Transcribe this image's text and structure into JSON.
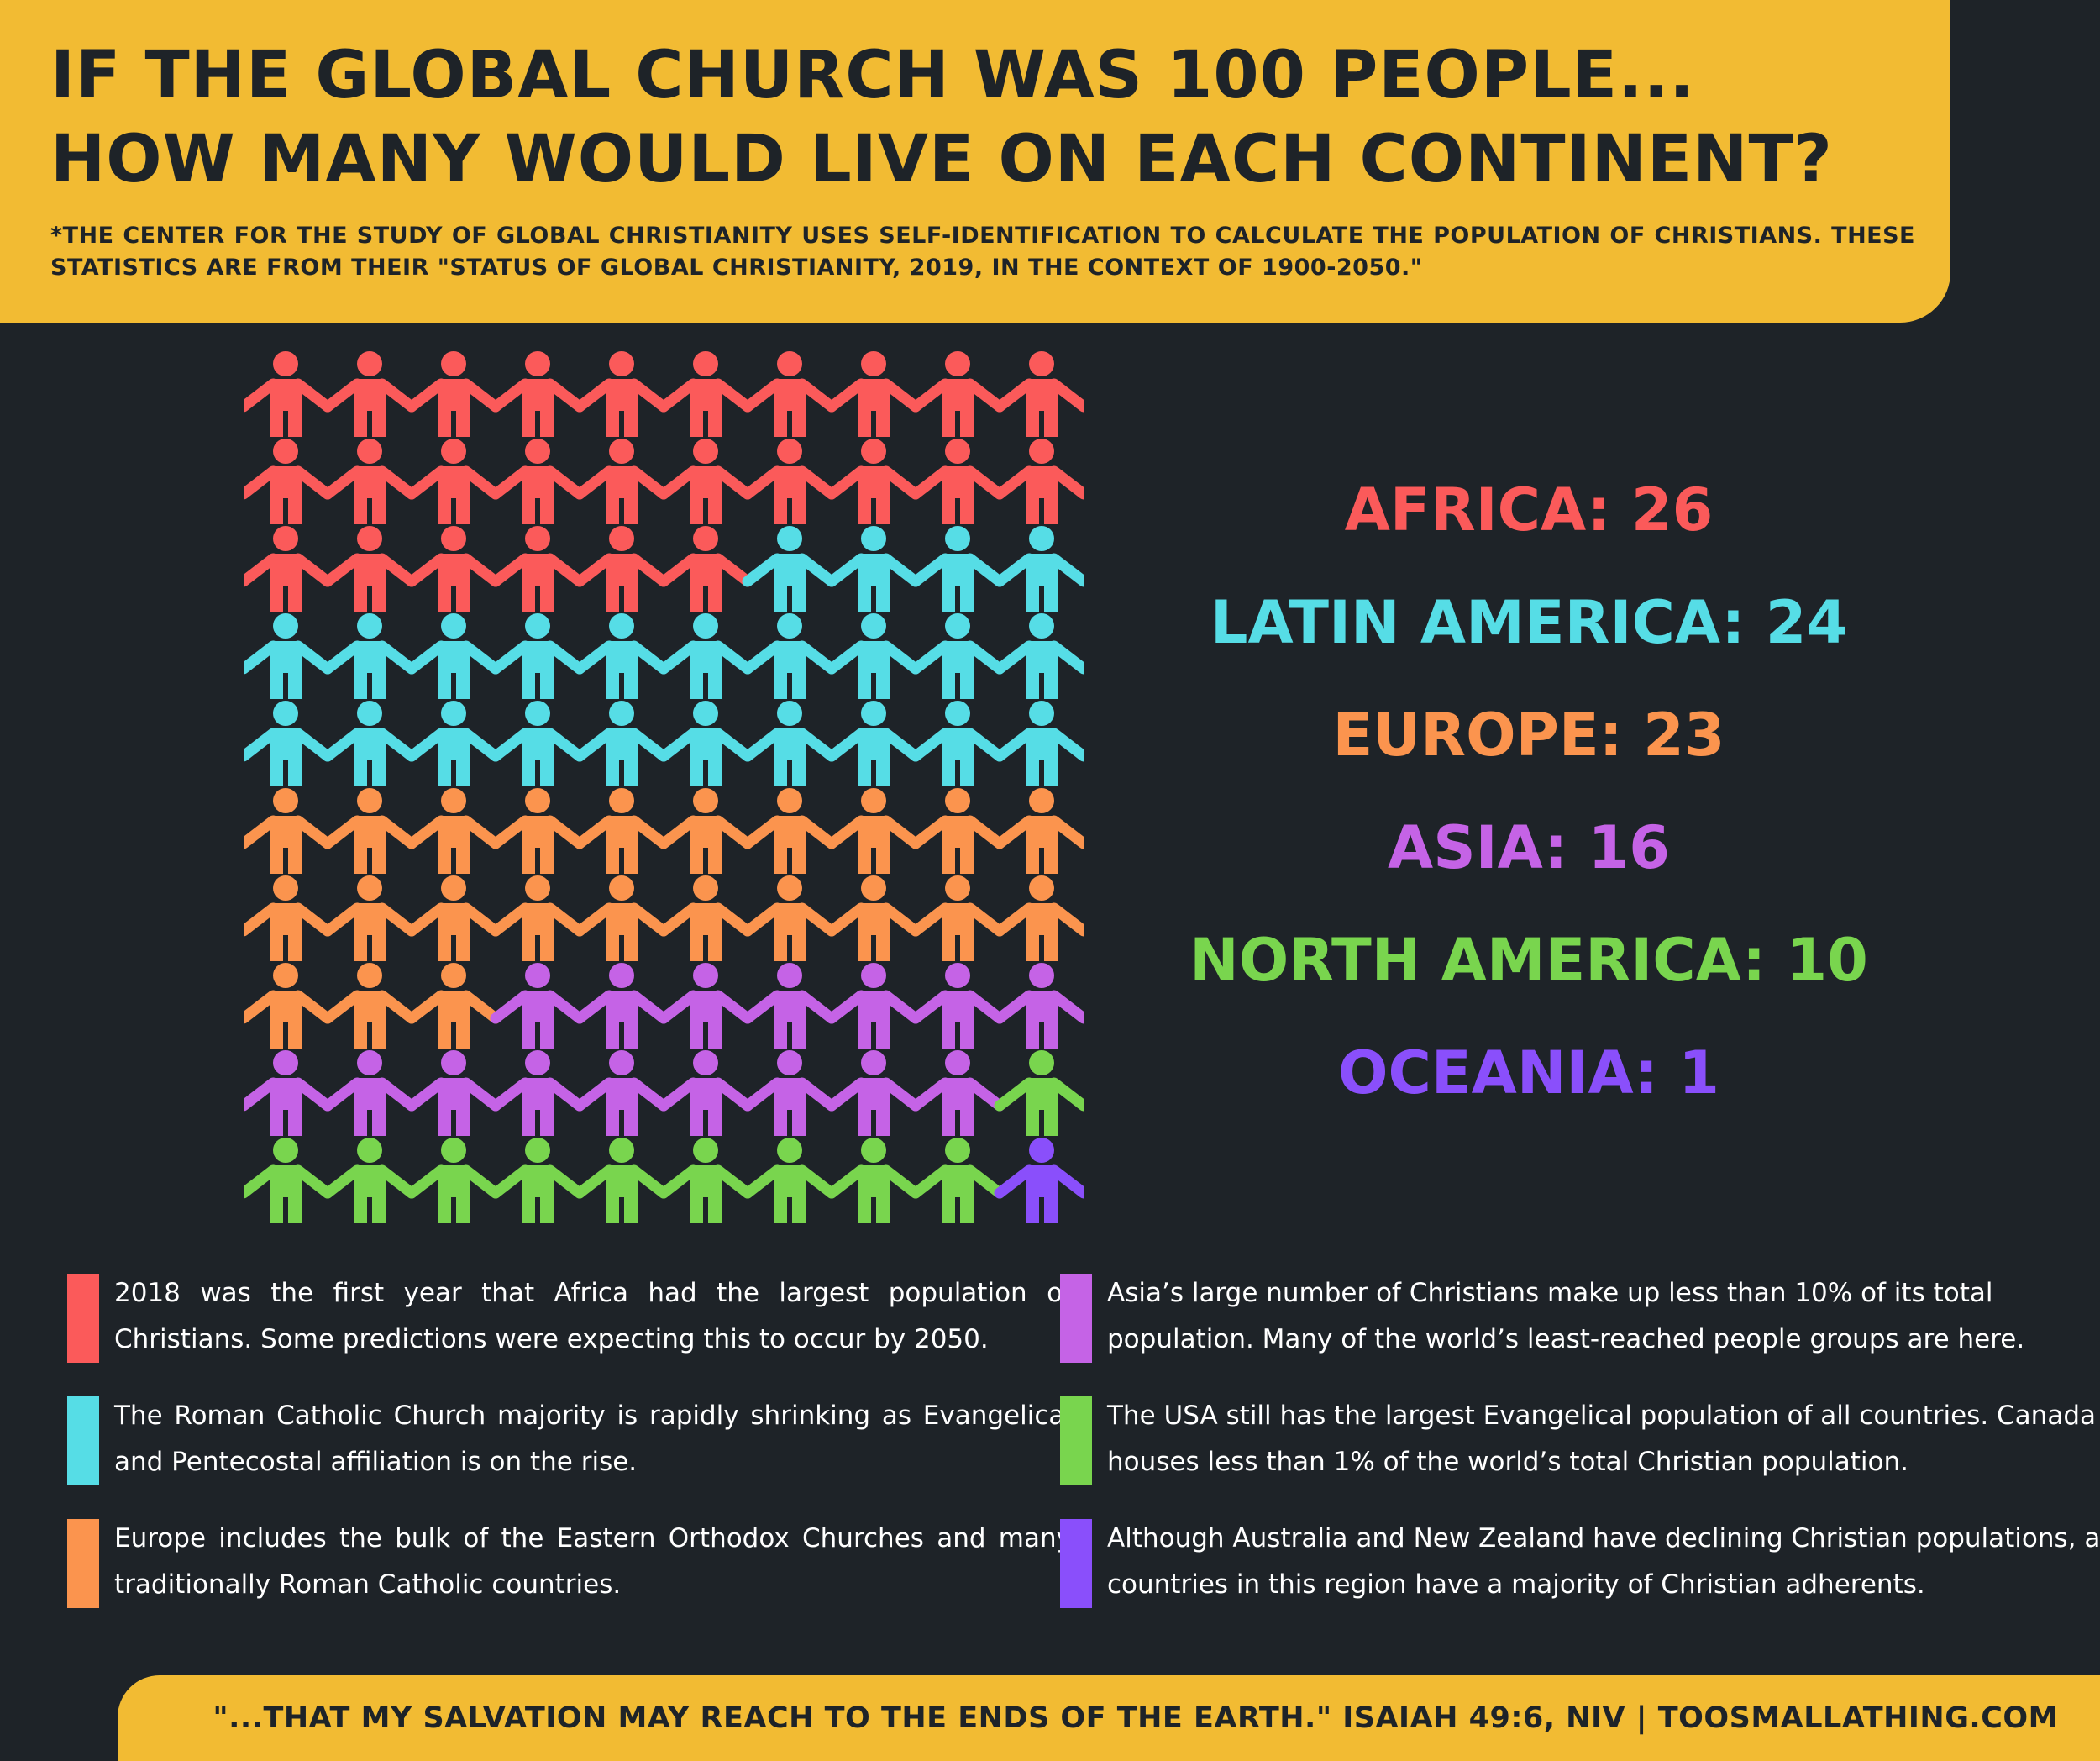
{
  "header": {
    "title_line1": "IF THE GLOBAL CHURCH WAS 100 PEOPLE...",
    "title_line2": "HOW MANY WOULD LIVE ON EACH CONTINENT?",
    "subtitle": "*THE CENTER FOR THE STUDY OF GLOBAL CHRISTIANITY USES SELF-IDENTIFICATION TO CALCULATE THE POPULATION OF CHRISTIANS. THESE STATISTICS ARE FROM THEIR \"STATUS OF GLOBAL CHRISTIANITY, 2019, IN THE CONTEXT OF 1900-2050.\""
  },
  "chart_data": {
    "type": "pictogram",
    "total": 100,
    "grid": {
      "rows": 10,
      "columns": 10
    },
    "categories": [
      "Africa",
      "Latin America",
      "Europe",
      "Asia",
      "North America",
      "Oceania"
    ],
    "values": [
      26,
      24,
      23,
      16,
      10,
      1
    ],
    "colors": [
      "#fb5a5a",
      "#56dde6",
      "#fb944e",
      "#c563e6",
      "#79d54e",
      "#8a4ffb"
    ],
    "legend": [
      {
        "label": "AFRICA: 26",
        "value": 26,
        "color": "#fb5a5a"
      },
      {
        "label": "LATIN AMERICA: 24",
        "value": 24,
        "color": "#56dde6"
      },
      {
        "label": "EUROPE: 23",
        "value": 23,
        "color": "#fb944e"
      },
      {
        "label": "ASIA: 16",
        "value": 16,
        "color": "#c563e6"
      },
      {
        "label": "NORTH AMERICA: 10",
        "value": 10,
        "color": "#79d54e"
      },
      {
        "label": "OCEANIA: 1",
        "value": 1,
        "color": "#8a4ffb"
      }
    ],
    "legend_position": "right"
  },
  "notes": [
    {
      "text": "2018 was the first year that Africa had the largest population of Christians. Some predictions were expecting this to occur by 2050.",
      "color": "#fb5a5a"
    },
    {
      "text": "The Roman Catholic Church majority is rapidly shrinking as Evangelical and Pentecostal affiliation is on the rise.",
      "color": "#56dde6"
    },
    {
      "text": "Europe includes the bulk of the Eastern Orthodox Churches and many traditionally Roman Catholic countries.",
      "color": "#fb944e"
    },
    {
      "text": "Asia’s large number of Christians make up less than 10% of its total population. Many of the world’s least-reached people groups are here.",
      "color": "#c563e6"
    },
    {
      "text": "The USA still has the largest Evangelical population of all countries. Canada houses less than 1% of the world’s total Christian population.",
      "color": "#79d54e"
    },
    {
      "text": "Although Australia and New Zealand have declining Christian populations, all countries in this region have a majority of Christian adherents.",
      "color": "#8a4ffb"
    }
  ],
  "footer": {
    "text": "\"...THAT MY SALVATION MAY REACH TO THE ENDS OF THE EARTH.\" ISAIAH 49:6, NIV  |  TOOSMALLATHING.COM"
  },
  "theme": {
    "background": "#1e2328",
    "accent": "#f2bb33",
    "text_dark": "#1e2328",
    "text_light": "#ffffff"
  }
}
